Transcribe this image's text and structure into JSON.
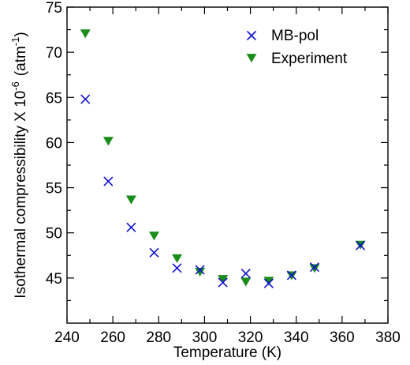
{
  "chart_data": {
    "type": "scatter",
    "title": "",
    "xlabel": "Temperature (K)",
    "ylabel": {
      "main": "Isothermal compressibility X 10",
      "exponent": "-6",
      "unit_prefix": "(atm",
      "unit_exponent": "-1",
      "unit_suffix": ")"
    },
    "xlim": [
      240,
      380
    ],
    "ylim": [
      40,
      75
    ],
    "xticks": [
      "240",
      "260",
      "280",
      "300",
      "320",
      "340",
      "360",
      "380"
    ],
    "yticks": [
      "45",
      "50",
      "55",
      "60",
      "65",
      "70",
      "75"
    ],
    "grid": false,
    "legend_position": "top-right",
    "series": [
      {
        "name": "MB-pol",
        "marker": "x",
        "color": "#1010d0",
        "x": [
          248,
          258,
          268,
          278,
          288,
          298,
          308,
          318,
          328,
          338,
          348,
          368
        ],
        "y": [
          64.8,
          55.7,
          50.6,
          47.8,
          46.1,
          45.9,
          44.5,
          45.5,
          44.4,
          45.3,
          46.2,
          48.6
        ]
      },
      {
        "name": "Experiment",
        "marker": "triangle-down",
        "color": "#1a8c1a",
        "x": [
          248,
          258,
          268,
          278,
          288,
          298,
          308,
          318,
          328,
          338,
          348,
          368
        ],
        "y": [
          72.1,
          60.2,
          53.7,
          49.7,
          47.2,
          45.7,
          44.9,
          44.6,
          44.7,
          45.3,
          46.1,
          48.7
        ]
      }
    ]
  }
}
